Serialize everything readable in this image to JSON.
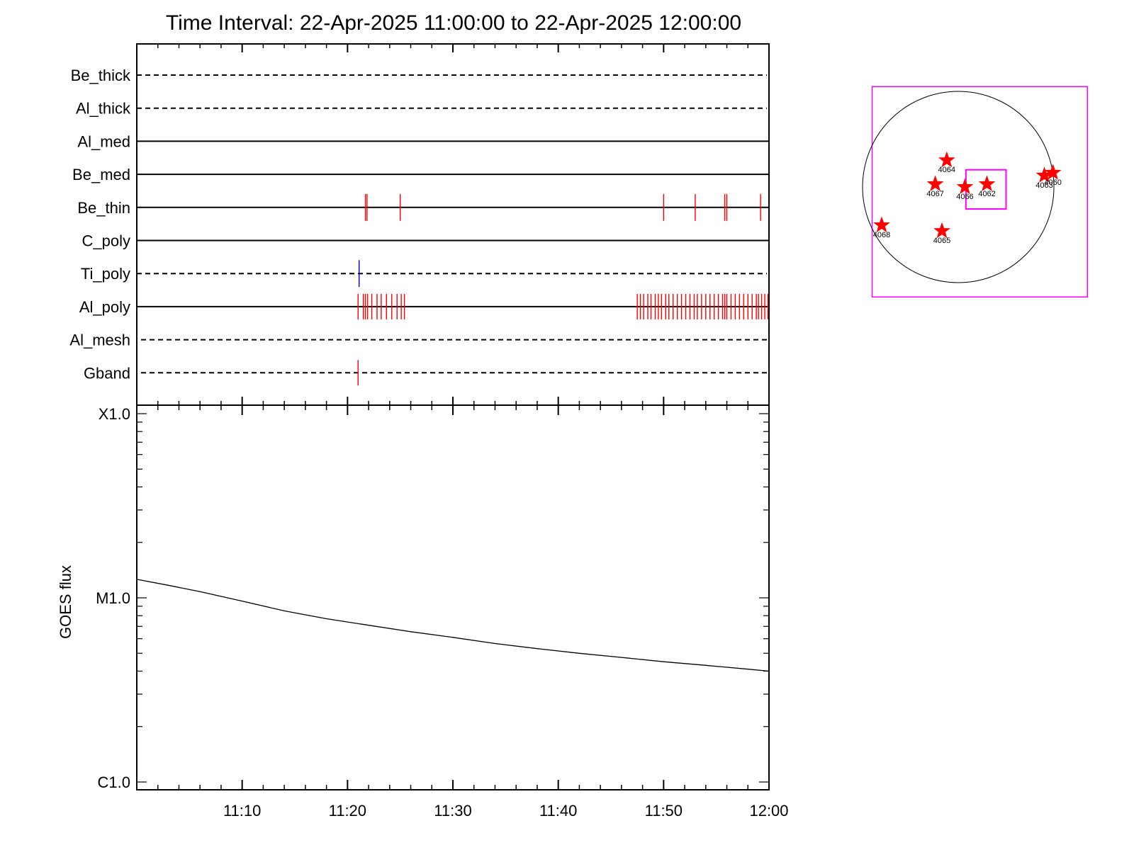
{
  "title": "Time Interval: 22-Apr-2025 11:00:00 to 22-Apr-2025 12:00:00",
  "colors": {
    "axis": "#000000",
    "red_tick": "#ff0000",
    "blue_tick": "#0000cc",
    "magenta_box": "#ff00ff",
    "star": "#ff0000",
    "disk": "#000000"
  },
  "chart_data": [
    {
      "type": "timeline",
      "name": "filter-panel",
      "x_range_min": [
        0,
        60
      ],
      "rows": [
        {
          "label": "Be_thick",
          "style": "dashed",
          "red_ticks": [],
          "blue_ticks": []
        },
        {
          "label": "Al_thick",
          "style": "dashed",
          "red_ticks": [],
          "blue_ticks": []
        },
        {
          "label": "Al_med",
          "style": "solid",
          "red_ticks": [],
          "blue_ticks": []
        },
        {
          "label": "Be_med",
          "style": "solid",
          "red_ticks": [],
          "blue_ticks": []
        },
        {
          "label": "Be_thin",
          "style": "solid",
          "red_ticks": [
            21.7,
            21.85,
            25.0,
            50.0,
            53.0,
            55.8,
            56.0,
            59.2
          ],
          "blue_ticks": []
        },
        {
          "label": "C_poly",
          "style": "solid",
          "red_ticks": [],
          "blue_ticks": []
        },
        {
          "label": "Ti_poly",
          "style": "dashed",
          "red_ticks": [],
          "blue_ticks": [
            21.1
          ]
        },
        {
          "label": "Al_poly",
          "style": "solid",
          "red_ticks": [
            21.0,
            21.5,
            21.7,
            21.9,
            22.3,
            22.8,
            23.2,
            23.7,
            24.2,
            24.7,
            25.1,
            25.4,
            47.5,
            47.8,
            48.1,
            48.5,
            48.8,
            49.2,
            49.5,
            49.8,
            50.2,
            50.5,
            50.9,
            51.3,
            51.7,
            52.1,
            52.5,
            52.9,
            53.2,
            53.6,
            54.0,
            54.4,
            54.8,
            55.2,
            55.6,
            55.8,
            56.0,
            56.4,
            56.8,
            57.2,
            57.6,
            58.0,
            58.4,
            58.8,
            59.0,
            59.3,
            59.6,
            59.9
          ],
          "blue_ticks": []
        },
        {
          "label": "Al_mesh",
          "style": "dashed",
          "red_ticks": [],
          "blue_ticks": []
        },
        {
          "label": "Gband",
          "style": "dashed",
          "red_ticks": [
            21.0
          ],
          "blue_ticks": []
        }
      ]
    },
    {
      "type": "line",
      "name": "goes-panel",
      "ylabel": "GOES flux",
      "y_scale": "log",
      "ylim": [
        1e-06,
        0.0001
      ],
      "y_ticks": [
        {
          "label": "X1.0",
          "value": 0.0001
        },
        {
          "label": "M1.0",
          "value": 1e-05
        },
        {
          "label": "C1.0",
          "value": 1e-06
        }
      ],
      "xlim_min": [
        0,
        60
      ],
      "x_ticks": [
        {
          "label": "11:10",
          "minute": 10
        },
        {
          "label": "11:20",
          "minute": 20
        },
        {
          "label": "11:30",
          "minute": 30
        },
        {
          "label": "11:40",
          "minute": 40
        },
        {
          "label": "11:50",
          "minute": 50
        },
        {
          "label": "12:00",
          "minute": 60
        }
      ],
      "series": [
        {
          "x_min": [
            0,
            3,
            6,
            10,
            14,
            18,
            22,
            26,
            30,
            34,
            38,
            42,
            46,
            50,
            54,
            58,
            60
          ],
          "y": [
            1.26e-05,
            1.17e-05,
            1.08e-05,
            9.6e-06,
            8.5e-06,
            7.7e-06,
            7.1e-06,
            6.55e-06,
            6.1e-06,
            5.65e-06,
            5.3e-06,
            5e-06,
            4.75e-06,
            4.5e-06,
            4.3e-06,
            4.1e-06,
            4e-06
          ]
        }
      ]
    },
    {
      "type": "scatter",
      "name": "solar-disk-map",
      "regions": [
        {
          "label": "4064",
          "x": -0.12,
          "y": 0.28
        },
        {
          "label": "4067",
          "x": -0.24,
          "y": 0.03
        },
        {
          "label": "4066",
          "x": 0.07,
          "y": 0.0
        },
        {
          "label": "4062",
          "x": 0.3,
          "y": 0.03
        },
        {
          "label": "4063",
          "x": 0.9,
          "y": 0.12
        },
        {
          "label": "4060",
          "x": 0.99,
          "y": 0.15
        },
        {
          "label": "4068",
          "x": -0.8,
          "y": -0.4
        },
        {
          "label": "4065",
          "x": -0.17,
          "y": -0.46
        }
      ],
      "field_of_view": {
        "x0": -0.9,
        "x1": 1.35,
        "y0": -1.15,
        "y1": 1.05
      },
      "inner_box": {
        "x0": 0.08,
        "x1": 0.5,
        "y0": -0.23,
        "y1": 0.18
      }
    }
  ]
}
